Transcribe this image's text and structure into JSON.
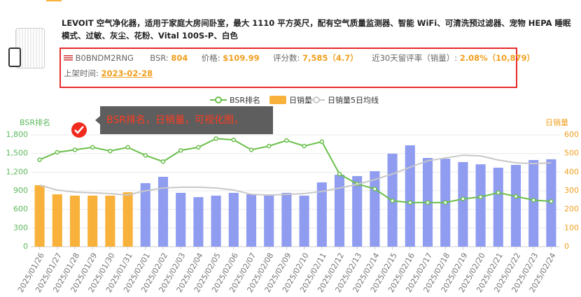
{
  "product": {
    "title": "LEVOIT 空气净化器，适用于家庭大房间卧室，最大 1110 平方英尺，配有空气质量监测器、智能 WiFi、可清洗预过滤器、宠物 HEPA 睡眠模式、过敏、灰尘、花粉、Vital 100S-P、白色",
    "asin": "B0BNDM2RNG",
    "bsr_label": "BSR:",
    "bsr": "804",
    "price_label": "价格:",
    "price": "$109.99",
    "ratings_label": "评分数:",
    "ratings": "7,585（4.7）",
    "review_rate_label": "近30天留评率（销量）:",
    "review_rate": "2.08%（10,879）",
    "listed_label": "上架时间:",
    "listed": "2023-02-28"
  },
  "chart_data": {
    "type": "bar-line",
    "ylabel": "BSR排名",
    "y2label": "日销量",
    "annotation": "BSR排名，日销量，可视化图，",
    "categories": [
      "2025/01/26",
      "2025/01/27",
      "2025/01/28",
      "2025/01/29",
      "2025/01/30",
      "2025/01/31",
      "2025/02/01",
      "2025/02/02",
      "2025/02/03",
      "2025/02/04",
      "2025/02/05",
      "2025/02/06",
      "2025/02/07",
      "2025/02/08",
      "2025/02/09",
      "2025/02/10",
      "2025/02/11",
      "2025/02/12",
      "2025/02/13",
      "2025/02/14",
      "2025/02/15",
      "2025/02/16",
      "2025/02/17",
      "2025/02/18",
      "2025/02/19",
      "2025/02/20",
      "2025/02/21",
      "2025/02/22",
      "2025/02/23",
      "2025/02/24"
    ],
    "series": [
      {
        "name": "BSR排名",
        "type": "line",
        "color": "#6abf4b",
        "values": [
          1400,
          1520,
          1560,
          1600,
          1540,
          1600,
          1470,
          1370,
          1550,
          1600,
          1740,
          1720,
          1560,
          1620,
          1710,
          1620,
          1690,
          1170,
          1010,
          930,
          740,
          710,
          710,
          710,
          770,
          800,
          870,
          810,
          750,
          730
        ]
      },
      {
        "name": "日销量",
        "type": "bar",
        "axis": "y2",
        "colors": [
          "#f8b23c",
          "#f8b23c",
          "#f8b23c",
          "#f8b23c",
          "#f8b23c",
          "#f8b23c",
          "#8f9cf0",
          "#8f9cf0",
          "#8f9cf0",
          "#8f9cf0",
          "#8f9cf0",
          "#8f9cf0",
          "#8f9cf0",
          "#8f9cf0",
          "#8f9cf0",
          "#8f9cf0",
          "#8f9cf0",
          "#8f9cf0",
          "#8f9cf0",
          "#8f9cf0",
          "#8f9cf0",
          "#8f9cf0",
          "#8f9cf0",
          "#8f9cf0",
          "#8f9cf0",
          "#8f9cf0",
          "#8f9cf0",
          "#8f9cf0",
          "#8f9cf0",
          "#8f9cf0"
        ],
        "values": [
          330,
          281,
          274,
          274,
          274,
          292,
          341,
          375,
          289,
          266,
          274,
          289,
          281,
          274,
          289,
          274,
          345,
          386,
          379,
          405,
          499,
          544,
          476,
          472,
          454,
          442,
          424,
          439,
          465,
          469
        ]
      },
      {
        "name": "日销量5日均线",
        "type": "line",
        "axis": "y2",
        "color": "#c8c8c8",
        "values": [
          330,
          304,
          293,
          289,
          285,
          277,
          300,
          315,
          319,
          319,
          315,
          304,
          281,
          277,
          281,
          285,
          296,
          315,
          334,
          360,
          390,
          427,
          461,
          476,
          491,
          487,
          465,
          450,
          446,
          450
        ]
      }
    ],
    "ylim": [
      0,
      1800
    ],
    "yticks": [
      0,
      300,
      600,
      900,
      {
        "value": 1200,
        "label": "1,200"
      },
      {
        "value": 1500,
        "label": "1,500"
      },
      {
        "value": 1800,
        "label": "1,800"
      }
    ],
    "y2lim": [
      0,
      600
    ],
    "y2ticks": [
      0,
      100,
      200,
      300,
      400,
      500,
      600
    ],
    "grid": true
  }
}
